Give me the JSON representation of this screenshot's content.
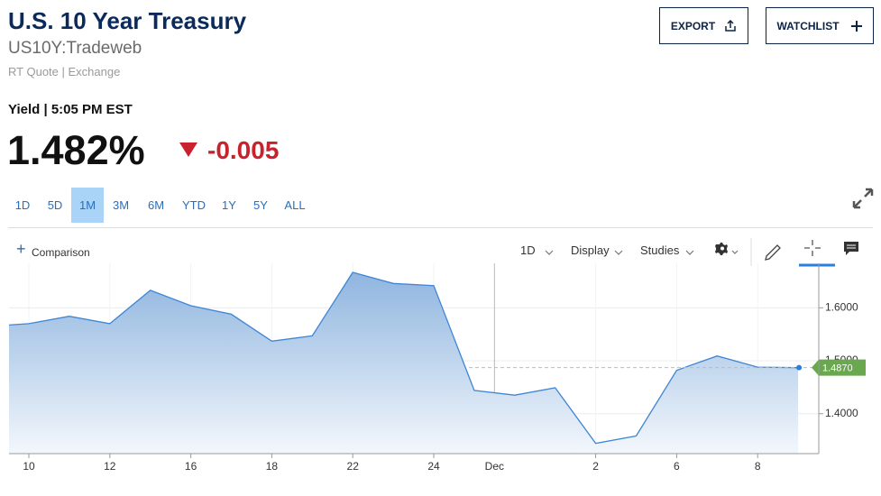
{
  "header": {
    "title": "U.S. 10 Year Treasury",
    "symbol": "US10Y:Tradeweb",
    "quote_source": "RT Quote | Exchange",
    "yield_label": "Yield | 5:05 PM EST",
    "price": "1.482%",
    "change": "-0.005"
  },
  "buttons": [
    "EXPORT",
    "WATCHLIST"
  ],
  "range_tabs": {
    "items": [
      "1D",
      "5D",
      "1M",
      "3M",
      "6M",
      "YTD",
      "1Y",
      "5Y",
      "ALL"
    ],
    "selected": "1M"
  },
  "toolbar": {
    "comparison": "Comparison",
    "interval": "1D",
    "display": "Display",
    "studies": "Studies"
  },
  "chart_data": {
    "type": "area",
    "color": "#3f86d4",
    "categories": [
      null,
      "10",
      null,
      "12",
      null,
      "16",
      null,
      "18",
      null,
      "22",
      null,
      "24",
      null,
      null,
      null,
      "2",
      null,
      "6",
      null,
      "8",
      null
    ],
    "month_label": "Dec",
    "values": [
      1.565,
      1.57,
      1.584,
      1.57,
      1.633,
      1.604,
      1.588,
      1.537,
      1.547,
      1.667,
      1.646,
      1.642,
      1.444,
      1.435,
      1.449,
      1.344,
      1.358,
      1.482,
      1.509,
      1.488,
      1.487
    ],
    "last_value_label": "1.4870",
    "ylim": [
      1.3246,
      1.684
    ],
    "yticks": [
      {
        "value": 1.4,
        "label": "1.4000"
      },
      {
        "value": 1.5,
        "label": "1.5000"
      },
      {
        "value": 1.6,
        "label": "1.6000"
      }
    ],
    "grid": true
  }
}
